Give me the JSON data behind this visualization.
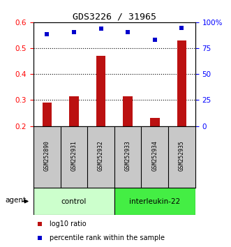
{
  "title": "GDS3226 / 31965",
  "categories": [
    "GSM252890",
    "GSM252931",
    "GSM252932",
    "GSM252933",
    "GSM252934",
    "GSM252935"
  ],
  "bar_values": [
    0.29,
    0.315,
    0.47,
    0.315,
    0.23,
    0.53
  ],
  "percentile_values": [
    0.555,
    0.562,
    0.576,
    0.562,
    0.532,
    0.577
  ],
  "bar_color": "#bb1111",
  "point_color": "#0000cc",
  "ylim_left": [
    0.2,
    0.6
  ],
  "ylim_right": [
    0,
    100
  ],
  "yticks_left": [
    0.2,
    0.3,
    0.4,
    0.5,
    0.6
  ],
  "ytick_labels_right": [
    "0",
    "25",
    "50",
    "75",
    "100%"
  ],
  "yticks_right": [
    0,
    25,
    50,
    75,
    100
  ],
  "control_label": "control",
  "interleukin_label": "interleukin-22",
  "agent_label": "agent",
  "legend_bar_label": "log10 ratio",
  "legend_point_label": "percentile rank within the sample",
  "control_color": "#ccffcc",
  "interleukin_color": "#44ee44",
  "label_area_color": "#c8c8c8",
  "bar_bottom": 0.2,
  "grid_yticks": [
    0.3,
    0.4,
    0.5
  ]
}
